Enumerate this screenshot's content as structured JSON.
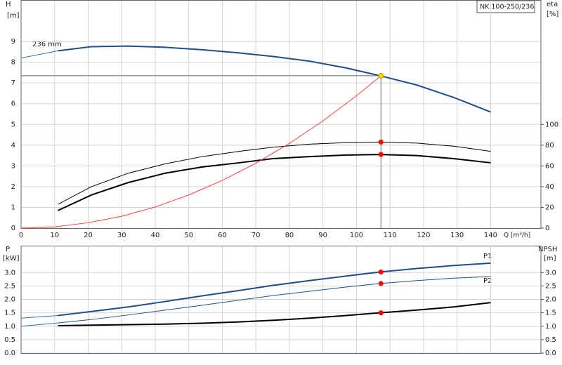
{
  "chart_data": [
    {
      "type": "line",
      "title": "NK 100-250/236",
      "y_label": "H",
      "y_unit": "[m]",
      "y2_label": "eta",
      "y2_unit": "[%]",
      "x_label": "Q [m³/h]",
      "annotation": "236 mm",
      "xlim": [
        0,
        155
      ],
      "xticks": [
        0,
        10,
        20,
        30,
        40,
        50,
        60,
        70,
        80,
        90,
        100,
        110,
        120,
        130,
        140
      ],
      "ylim": [
        0,
        11
      ],
      "yticks": [
        0,
        1,
        2,
        3,
        4,
        5,
        6,
        7,
        8,
        9
      ],
      "y2lim": [
        0,
        220
      ],
      "y2ticks": [
        0,
        20,
        40,
        60,
        80,
        100
      ],
      "grid": true,
      "series": [
        {
          "color": "#3b6fb0",
          "line_width": 1,
          "x": [
            0,
            11
          ],
          "values": [
            8.2,
            8.55
          ]
        },
        {
          "color": "#1f4e8c",
          "line_width": 2,
          "x": [
            11,
            21,
            32,
            43,
            54,
            65,
            75,
            86,
            97,
            107,
            118,
            129,
            140
          ],
          "values": [
            8.55,
            8.75,
            8.78,
            8.72,
            8.6,
            8.45,
            8.28,
            8.05,
            7.72,
            7.35,
            6.9,
            6.3,
            5.6
          ]
        },
        {
          "color": "#000000",
          "line_width": 1,
          "axis": "y2",
          "x": [
            11,
            21,
            32,
            43,
            54,
            65,
            75,
            86,
            97,
            107,
            118,
            129,
            140
          ],
          "values": [
            23,
            40,
            53,
            62,
            69,
            74,
            78,
            81,
            82.5,
            83,
            82,
            79,
            74
          ]
        },
        {
          "color": "#000000",
          "line_width": 2,
          "axis": "y2",
          "x": [
            11,
            21,
            32,
            43,
            54,
            65,
            75,
            86,
            97,
            107,
            118,
            129,
            140
          ],
          "values": [
            17,
            32,
            44,
            53,
            59,
            63,
            67,
            69,
            70.5,
            71,
            70,
            67,
            63
          ]
        },
        {
          "color": "#ff4040",
          "line_width": 1,
          "x": [
            0,
            10,
            20,
            30,
            40,
            50,
            60,
            70,
            80,
            90,
            100,
            107.3
          ],
          "values": [
            0,
            0.06,
            0.26,
            0.57,
            1.02,
            1.6,
            2.3,
            3.13,
            4.08,
            5.17,
            6.38,
            7.35
          ]
        },
        {
          "color": "#ffd700",
          "marker": true,
          "guide": true,
          "x": [
            107.3
          ],
          "values": [
            7.35
          ]
        },
        {
          "color": "#ff0000",
          "marker": true,
          "axis": "y2",
          "x": [
            107.3
          ],
          "values": [
            83
          ]
        },
        {
          "color": "#ff0000",
          "marker": true,
          "axis": "y2",
          "x": [
            107.3
          ],
          "values": [
            71
          ]
        }
      ]
    },
    {
      "type": "line",
      "y_label": "P",
      "y_unit": "[kW]",
      "y2_label": "NPSH",
      "y2_unit": "[m]",
      "xlim": [
        0,
        155
      ],
      "xticks": [
        0,
        10,
        20,
        30,
        40,
        50,
        60,
        70,
        80,
        90,
        100,
        110,
        120,
        130,
        140
      ],
      "ylim": [
        0,
        4
      ],
      "yticks": [
        {
          "value": 0,
          "label": "0.0"
        },
        0.5,
        {
          "value": 1,
          "label": "1.0"
        },
        1.5,
        {
          "value": 2,
          "label": "2.0"
        },
        2.5,
        {
          "value": 3,
          "label": "3.0"
        }
      ],
      "y2lim": [
        0,
        4
      ],
      "y2ticks": [
        {
          "value": 0,
          "label": "0.0"
        },
        0.5,
        {
          "value": 1,
          "label": "1.0"
        },
        1.5,
        {
          "value": 2,
          "label": "2.0"
        },
        2.5,
        {
          "value": 3,
          "label": "3.0"
        }
      ],
      "grid": true,
      "series": [
        {
          "color": "#3b6fb0",
          "line_width": 1,
          "x": [
            0,
            11
          ],
          "values": [
            1.3,
            1.4
          ]
        },
        {
          "name": "P1",
          "color": "#1f4e8c",
          "line_width": 2,
          "x": [
            11,
            21,
            32,
            43,
            54,
            65,
            75,
            86,
            97,
            107,
            118,
            129,
            140
          ],
          "values": [
            1.4,
            1.55,
            1.72,
            1.92,
            2.13,
            2.33,
            2.52,
            2.7,
            2.87,
            3.02,
            3.15,
            3.26,
            3.35
          ]
        },
        {
          "color": "#3b6fb0",
          "line_width": 1,
          "x": [
            0,
            11
          ],
          "values": [
            1.0,
            1.12
          ]
        },
        {
          "name": "P2",
          "color": "#1f4e8c",
          "line_width": 1,
          "x": [
            11,
            21,
            32,
            43,
            54,
            65,
            75,
            86,
            97,
            107,
            118,
            129,
            140
          ],
          "values": [
            1.12,
            1.25,
            1.42,
            1.6,
            1.78,
            1.97,
            2.14,
            2.3,
            2.46,
            2.59,
            2.7,
            2.79,
            2.85
          ]
        },
        {
          "color": "#000000",
          "line_width": 2,
          "axis": "y2",
          "x": [
            11,
            21,
            32,
            43,
            54,
            65,
            75,
            86,
            97,
            107,
            118,
            129,
            140
          ],
          "values": [
            1.02,
            1.04,
            1.06,
            1.08,
            1.11,
            1.16,
            1.22,
            1.3,
            1.4,
            1.5,
            1.6,
            1.72,
            1.88
          ]
        },
        {
          "color": "#ff0000",
          "marker": true,
          "x": [
            107.3
          ],
          "values": [
            3.02
          ]
        },
        {
          "color": "#ff0000",
          "marker": true,
          "x": [
            107.3
          ],
          "values": [
            2.59
          ]
        },
        {
          "color": "#ff0000",
          "marker": true,
          "axis": "y2",
          "x": [
            107.3
          ],
          "values": [
            1.5
          ]
        }
      ]
    }
  ]
}
